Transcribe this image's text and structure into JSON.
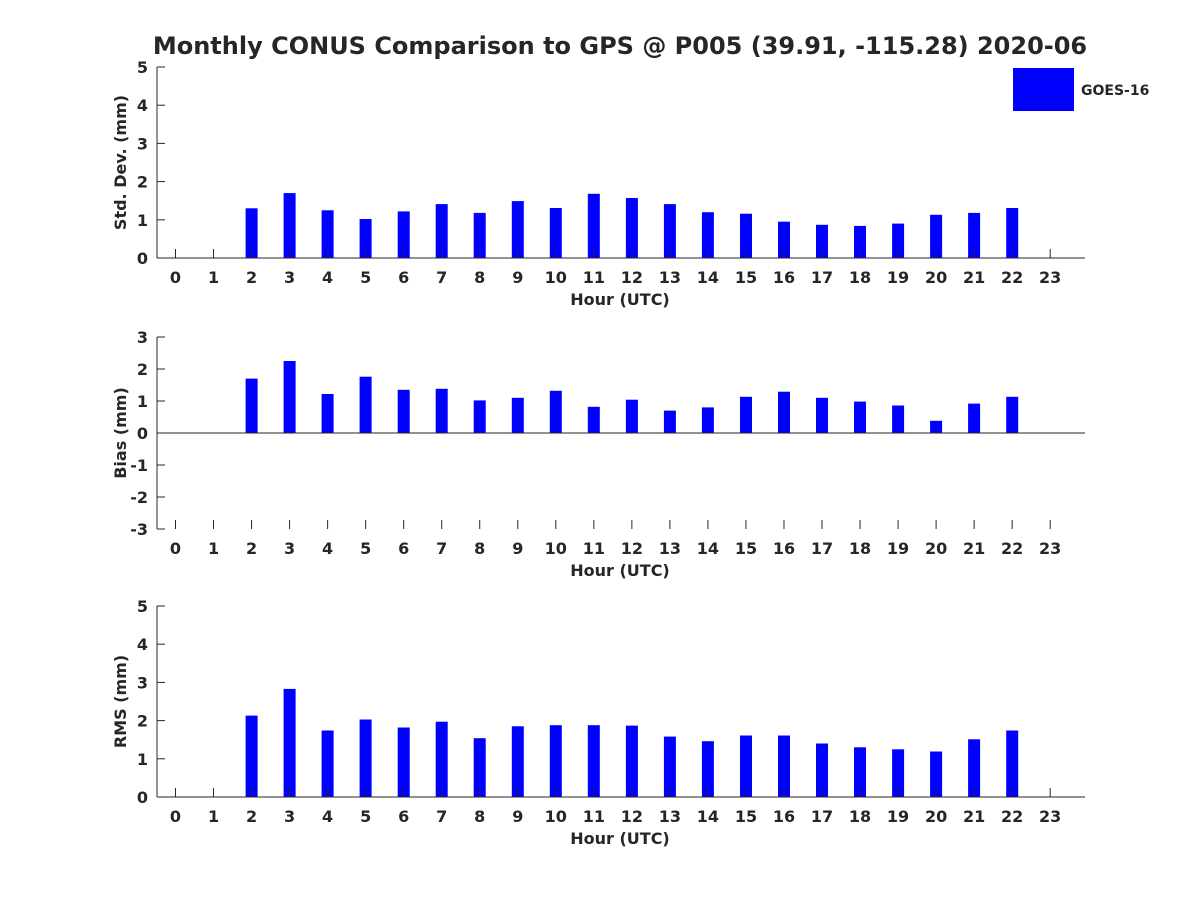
{
  "title": "Monthly CONUS Comparison to GPS @ P005 (39.91, -115.28) 2020-06",
  "legend": {
    "label": "GOES-16",
    "color": "#0000ff",
    "placement": "top-right"
  },
  "chart_data": [
    {
      "type": "bar",
      "xlabel": "Hour (UTC)",
      "ylabel": "Std. Dev. (mm)",
      "ylim": [
        0,
        5
      ],
      "yticks": [
        0,
        1,
        2,
        3,
        4,
        5
      ],
      "categories": [
        "0",
        "1",
        "2",
        "3",
        "4",
        "5",
        "6",
        "7",
        "8",
        "9",
        "10",
        "11",
        "12",
        "13",
        "14",
        "15",
        "16",
        "17",
        "18",
        "19",
        "20",
        "21",
        "22",
        "23"
      ],
      "series": [
        {
          "name": "GOES-16",
          "values": [
            null,
            null,
            1.3,
            1.7,
            1.25,
            1.02,
            1.22,
            1.41,
            1.18,
            1.49,
            1.31,
            1.68,
            1.57,
            1.41,
            1.2,
            1.16,
            0.95,
            0.87,
            0.84,
            0.9,
            1.13,
            1.18,
            1.31,
            null
          ]
        }
      ]
    },
    {
      "type": "bar",
      "xlabel": "Hour (UTC)",
      "ylabel": "Bias (mm)",
      "ylim": [
        -3,
        3
      ],
      "yticks": [
        -3,
        -2,
        -1,
        0,
        1,
        2,
        3
      ],
      "categories": [
        "0",
        "1",
        "2",
        "3",
        "4",
        "5",
        "6",
        "7",
        "8",
        "9",
        "10",
        "11",
        "12",
        "13",
        "14",
        "15",
        "16",
        "17",
        "18",
        "19",
        "20",
        "21",
        "22",
        "23"
      ],
      "series": [
        {
          "name": "GOES-16",
          "values": [
            null,
            null,
            1.7,
            2.25,
            1.22,
            1.76,
            1.35,
            1.38,
            1.02,
            1.1,
            1.32,
            0.82,
            1.04,
            0.7,
            0.8,
            1.13,
            1.29,
            1.1,
            0.98,
            0.86,
            0.38,
            0.92,
            1.13,
            null
          ]
        }
      ]
    },
    {
      "type": "bar",
      "xlabel": "Hour (UTC)",
      "ylabel": "RMS (mm)",
      "ylim": [
        0,
        5
      ],
      "yticks": [
        0,
        1,
        2,
        3,
        4,
        5
      ],
      "categories": [
        "0",
        "1",
        "2",
        "3",
        "4",
        "5",
        "6",
        "7",
        "8",
        "9",
        "10",
        "11",
        "12",
        "13",
        "14",
        "15",
        "16",
        "17",
        "18",
        "19",
        "20",
        "21",
        "22",
        "23"
      ],
      "series": [
        {
          "name": "GOES-16",
          "values": [
            null,
            null,
            2.13,
            2.83,
            1.74,
            2.03,
            1.82,
            1.97,
            1.54,
            1.85,
            1.88,
            1.88,
            1.87,
            1.58,
            1.46,
            1.61,
            1.61,
            1.4,
            1.3,
            1.25,
            1.19,
            1.51,
            1.74,
            null
          ]
        }
      ]
    }
  ]
}
